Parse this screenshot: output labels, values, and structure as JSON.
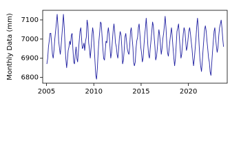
{
  "chart_data": {
    "type": "line",
    "y_label": "Monthly Data (mm)",
    "xlim": [
      2004.6,
      2024.1
    ],
    "xticks": [
      2005,
      2010,
      2015,
      2020
    ],
    "ylim": [
      6770,
      7150
    ],
    "yticks": [
      6800,
      6900,
      7000,
      7100
    ],
    "color": "#1f1fa0",
    "x": [
      2005.04,
      2005.13,
      2005.21,
      2005.29,
      2005.38,
      2005.46,
      2005.54,
      2005.63,
      2005.71,
      2005.79,
      2005.88,
      2005.96,
      2006.04,
      2006.13,
      2006.21,
      2006.29,
      2006.38,
      2006.46,
      2006.54,
      2006.63,
      2006.71,
      2006.79,
      2006.88,
      2006.96,
      2007.04,
      2007.13,
      2007.21,
      2007.29,
      2007.38,
      2007.46,
      2007.54,
      2007.63,
      2007.71,
      2007.79,
      2007.88,
      2007.96,
      2008.04,
      2008.13,
      2008.21,
      2008.29,
      2008.38,
      2008.46,
      2008.54,
      2008.63,
      2008.71,
      2008.79,
      2008.88,
      2008.96,
      2009.04,
      2009.13,
      2009.21,
      2009.29,
      2009.38,
      2009.46,
      2009.54,
      2009.63,
      2009.71,
      2009.79,
      2009.88,
      2009.96,
      2010.04,
      2010.13,
      2010.21,
      2010.29,
      2010.38,
      2010.46,
      2010.54,
      2010.63,
      2010.71,
      2010.79,
      2010.88,
      2010.96,
      2011.04,
      2011.13,
      2011.21,
      2011.29,
      2011.38,
      2011.46,
      2011.54,
      2011.63,
      2011.71,
      2011.79,
      2011.88,
      2011.96,
      2012.04,
      2012.13,
      2012.21,
      2012.29,
      2012.38,
      2012.46,
      2012.54,
      2012.63,
      2012.71,
      2012.79,
      2012.88,
      2012.96,
      2013.04,
      2013.13,
      2013.21,
      2013.29,
      2013.38,
      2013.46,
      2013.54,
      2013.63,
      2013.71,
      2013.79,
      2013.88,
      2013.96,
      2014.04,
      2014.13,
      2014.21,
      2014.29,
      2014.38,
      2014.46,
      2014.54,
      2014.63,
      2014.71,
      2014.79,
      2014.88,
      2014.96,
      2015.04,
      2015.13,
      2015.21,
      2015.29,
      2015.38,
      2015.46,
      2015.54,
      2015.63,
      2015.71,
      2015.79,
      2015.88,
      2015.96,
      2016.04,
      2016.13,
      2016.21,
      2016.29,
      2016.38,
      2016.46,
      2016.54,
      2016.63,
      2016.71,
      2016.79,
      2016.88,
      2016.96,
      2017.04,
      2017.13,
      2017.21,
      2017.29,
      2017.38,
      2017.46,
      2017.54,
      2017.63,
      2017.71,
      2017.79,
      2017.88,
      2017.96,
      2018.04,
      2018.13,
      2018.21,
      2018.29,
      2018.38,
      2018.46,
      2018.54,
      2018.63,
      2018.71,
      2018.79,
      2018.88,
      2018.96,
      2019.04,
      2019.13,
      2019.21,
      2019.29,
      2019.38,
      2019.46,
      2019.54,
      2019.63,
      2019.71,
      2019.79,
      2019.88,
      2019.96,
      2020.04,
      2020.13,
      2020.21,
      2020.29,
      2020.38,
      2020.46,
      2020.54,
      2020.63,
      2020.71,
      2020.79,
      2020.88,
      2020.96,
      2021.04,
      2021.13,
      2021.21,
      2021.29,
      2021.38,
      2021.46,
      2021.54,
      2021.63,
      2021.71,
      2021.79,
      2021.88,
      2021.96,
      2022.04,
      2022.13,
      2022.21,
      2022.29,
      2022.38,
      2022.46,
      2022.54,
      2022.63,
      2022.71,
      2022.79,
      2022.88,
      2022.96,
      2023.04,
      2023.13,
      2023.21,
      2023.29,
      2023.38,
      2023.46,
      2023.54,
      2023.63,
      2023.71
    ],
    "values": [
      6870,
      6900,
      6960,
      6990,
      7030,
      7030,
      6980,
      6920,
      6900,
      6940,
      7000,
      7040,
      7080,
      7130,
      7070,
      6990,
      6950,
      6920,
      6960,
      7020,
      7070,
      7130,
      7060,
      6970,
      6900,
      6850,
      6890,
      6940,
      6960,
      6990,
      6970,
      7020,
      7030,
      6950,
      6880,
      6870,
      6920,
      6960,
      6900,
      6880,
      6940,
      6990,
      7040,
      7060,
      7000,
      6950,
      6960,
      6980,
      6940,
      6990,
      7010,
      7100,
      7070,
      6980,
      6950,
      6900,
      6950,
      7010,
      7060,
      7030,
      6960,
      6880,
      6810,
      6790,
      6850,
      6930,
      6990,
      7040,
      7090,
      7080,
      7010,
      6950,
      6900,
      6890,
      6940,
      6990,
      6980,
      7030,
      7060,
      7020,
      6960,
      6900,
      6930,
      6990,
      7040,
      7080,
      7040,
      6980,
      6960,
      6920,
      6900,
      6950,
      7010,
      7040,
      7020,
      6960,
      6870,
      6890,
      6940,
      7010,
      7030,
      6990,
      6950,
      6930,
      6920,
      6960,
      7040,
      7060,
      7010,
      6960,
      6880,
      6860,
      6880,
      6950,
      6990,
      7010,
      7060,
      7080,
      7020,
      6960,
      6930,
      6880,
      6900,
      6960,
      7020,
      7060,
      7110,
      7040,
      6970,
      6920,
      6900,
      6950,
      6990,
      7040,
      7090,
      7070,
      7010,
      6960,
      6890,
      6910,
      6950,
      7000,
      7050,
      7020,
      6970,
      6920,
      6950,
      7000,
      7030,
      7070,
      7120,
      7060,
      6980,
      6930,
      6910,
      6950,
      6990,
      7030,
      7060,
      7010,
      6950,
      6900,
      6860,
      6900,
      6970,
      7040,
      7060,
      7080,
      7010,
      6950,
      6900,
      6920,
      6980,
      7030,
      7060,
      7040,
      6990,
      6940,
      6960,
      7000,
      7040,
      7060,
      7030,
      6990,
      6950,
      6900,
      6860,
      6900,
      6950,
      7000,
      7070,
      7110,
      7060,
      6970,
      6900,
      6860,
      6830,
      6880,
      6940,
      7000,
      7050,
      7070,
      7040,
      6990,
      6950,
      6900,
      6880,
      6830,
      6810,
      6870,
      6930,
      6990,
      7040,
      7060,
      7000,
      6960,
      6930,
      6960,
      7020,
      7060,
      7080,
      7100,
      7060,
      7000,
      6960
    ]
  }
}
